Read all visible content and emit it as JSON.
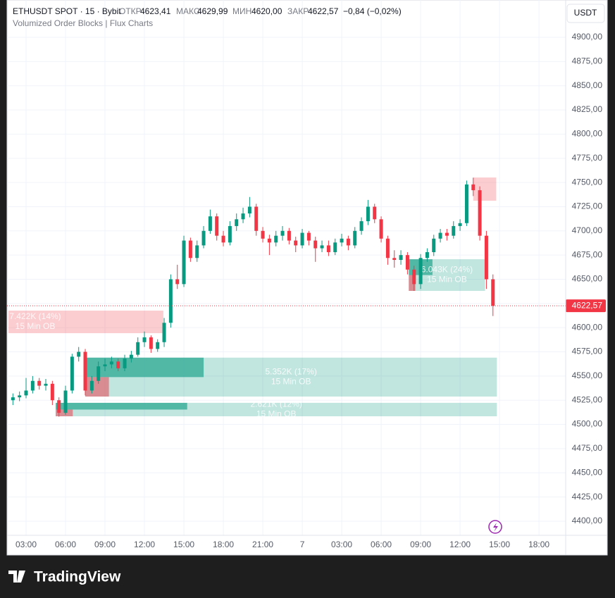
{
  "chart_data": {
    "type": "candlestick",
    "header": {
      "symbol": "ETHUSDT SPOT · 15 · Bybit",
      "open_label": "ОТКР",
      "open": "4623,41",
      "high_label": "МАКС",
      "high": "4629,99",
      "low_label": "МИН",
      "low": "4620,00",
      "close_label": "ЗАКР",
      "close": "4622,57",
      "change": "−0,84 (−0,02%)",
      "indicator": "Volumized Order Blocks | Flux Charts"
    },
    "currency": "USDT",
    "brand": "TradingView",
    "up_color": "#089981",
    "down_color": "#f23645",
    "x": [
      2,
      2.5,
      3,
      3.5,
      4,
      4.5,
      5,
      5.5,
      6,
      6.5,
      7,
      7.5,
      8,
      8.5,
      9,
      9.5,
      10,
      10.5,
      11,
      11.5,
      12,
      12.5,
      13,
      13.5,
      14,
      14.5,
      15,
      15.5,
      16,
      16.5,
      17,
      17.5,
      18,
      18.5,
      19,
      19.5,
      20,
      20.5,
      21,
      21.5,
      22,
      22.5,
      23,
      23.5,
      24,
      24.5,
      25,
      25.5,
      26,
      26.5,
      27,
      27.5,
      28,
      28.5,
      29,
      29.5,
      30,
      30.5,
      31,
      31.5,
      32,
      32.5,
      33,
      33.5,
      34,
      34.5,
      35,
      35.5,
      36,
      36.5,
      37,
      37.5,
      38,
      38.5
    ],
    "open": [
      4525,
      4528,
      4530,
      4535,
      4545,
      4540,
      4542,
      4525,
      4512,
      4535,
      4570,
      4575,
      4535,
      4545,
      4560,
      4562,
      4565,
      4558,
      4568,
      4572,
      4585,
      4590,
      4578,
      4585,
      4605,
      4650,
      4645,
      4690,
      4672,
      4685,
      4700,
      4715,
      4695,
      4688,
      4705,
      4712,
      4718,
      4725,
      4700,
      4692,
      4688,
      4695,
      4700,
      4690,
      4685,
      4698,
      4690,
      4682,
      4685,
      4678,
      4688,
      4692,
      4685,
      4700,
      4710,
      4725,
      4712,
      4692,
      4672,
      4670,
      4675,
      4660,
      4645,
      4672,
      4678,
      4692,
      4698,
      4695,
      4705,
      4708,
      4748,
      4742,
      4695,
      4650
    ],
    "high": [
      4532,
      4534,
      4548,
      4550,
      4548,
      4547,
      4545,
      4528,
      4540,
      4573,
      4580,
      4578,
      4550,
      4565,
      4568,
      4570,
      4568,
      4572,
      4576,
      4590,
      4596,
      4592,
      4588,
      4610,
      4655,
      4665,
      4695,
      4693,
      4690,
      4705,
      4722,
      4718,
      4700,
      4710,
      4718,
      4724,
      4735,
      4728,
      4704,
      4696,
      4700,
      4705,
      4703,
      4694,
      4702,
      4700,
      4694,
      4690,
      4690,
      4692,
      4697,
      4695,
      4704,
      4714,
      4732,
      4728,
      4715,
      4695,
      4680,
      4680,
      4678,
      4664,
      4676,
      4682,
      4696,
      4702,
      4702,
      4710,
      4712,
      4752,
      4755,
      4746,
      4700,
      4655
    ],
    "low": [
      4520,
      4524,
      4527,
      4532,
      4536,
      4535,
      4520,
      4508,
      4510,
      4532,
      4565,
      4530,
      4532,
      4542,
      4555,
      4558,
      4555,
      4555,
      4564,
      4570,
      4580,
      4574,
      4575,
      4580,
      4600,
      4640,
      4642,
      4668,
      4668,
      4682,
      4697,
      4690,
      4684,
      4685,
      4700,
      4708,
      4714,
      4695,
      4688,
      4675,
      4684,
      4690,
      4686,
      4678,
      4682,
      4685,
      4668,
      4678,
      4674,
      4675,
      4684,
      4680,
      4682,
      4696,
      4706,
      4708,
      4688,
      4665,
      4662,
      4665,
      4655,
      4638,
      4640,
      4668,
      4674,
      4688,
      4690,
      4692,
      4700,
      4705,
      4736,
      4690,
      4640,
      4612
    ],
    "close": [
      4528,
      4530,
      4535,
      4545,
      4540,
      4542,
      4525,
      4512,
      4535,
      4570,
      4575,
      4535,
      4545,
      4560,
      4562,
      4565,
      4558,
      4568,
      4572,
      4585,
      4590,
      4578,
      4585,
      4605,
      4650,
      4645,
      4690,
      4672,
      4685,
      4700,
      4715,
      4695,
      4688,
      4705,
      4712,
      4718,
      4725,
      4700,
      4692,
      4688,
      4695,
      4700,
      4690,
      4685,
      4698,
      4690,
      4682,
      4685,
      4678,
      4688,
      4692,
      4685,
      4700,
      4710,
      4725,
      4712,
      4692,
      4672,
      4670,
      4675,
      4660,
      4645,
      4672,
      4678,
      4692,
      4698,
      4695,
      4705,
      4708,
      4748,
      4742,
      4695,
      4650,
      4622.57
    ],
    "last_price": 4622.57,
    "last_price_label": "4622,57",
    "order_blocks": [
      {
        "kind": "bear",
        "x0": 1.66,
        "x1": 13.44,
        "top": 4617.6,
        "bottom": 4594.3,
        "label": "7.422K (14%)",
        "sublabel": "15 Min OB"
      },
      {
        "kind": "bull",
        "x0": 7.5,
        "x1": 38.8,
        "top": 4569.0,
        "bottom": 4528.8,
        "bull_x1": 16.5,
        "bear_x1": 9.3,
        "label": "5.352K (17%)",
        "sublabel": "15 Min OB"
      },
      {
        "kind": "bull",
        "x0": 5.25,
        "x1": 38.8,
        "top": 4522.3,
        "bottom": 4508.4,
        "bull_x1": 15.25,
        "bear_x1": 6.55,
        "label": "2.621K (12%)",
        "sublabel": "15 Min OB"
      },
      {
        "kind": "bull",
        "x0": 32.1,
        "x1": 37.9,
        "top": 4670.7,
        "bottom": 4638.0,
        "bull_x1": 33.9,
        "bear_x1": 32.6,
        "label": "6.043K (24%)",
        "sublabel": "15 Min OB"
      },
      {
        "kind": "bear",
        "x0": 37.0,
        "x1": 38.75,
        "top": 4755.2,
        "bottom": 4731.2
      }
    ],
    "xlim": [
      1.66,
      44.03
    ],
    "xticks": [
      {
        "value": 3,
        "label": "03:00"
      },
      {
        "value": 6,
        "label": "06:00"
      },
      {
        "value": 9,
        "label": "09:00"
      },
      {
        "value": 12,
        "label": "12:00"
      },
      {
        "value": 15,
        "label": "15:00"
      },
      {
        "value": 18,
        "label": "18:00"
      },
      {
        "value": 21,
        "label": "21:00"
      },
      {
        "value": 24,
        "label": "7"
      },
      {
        "value": 27,
        "label": "03:00"
      },
      {
        "value": 30,
        "label": "06:00"
      },
      {
        "value": 33,
        "label": "09:00"
      },
      {
        "value": 36,
        "label": "12:00"
      },
      {
        "value": 39,
        "label": "15:00"
      },
      {
        "value": 42,
        "label": "18:00"
      }
    ],
    "ylim": [
      4385.4,
      4938.6
    ],
    "yticks": [
      {
        "value": 4400,
        "label": "4400,00"
      },
      {
        "value": 4425,
        "label": "4425,00"
      },
      {
        "value": 4450,
        "label": "4450,00"
      },
      {
        "value": 4475,
        "label": "4475,00"
      },
      {
        "value": 4500,
        "label": "4500,00"
      },
      {
        "value": 4525,
        "label": "4525,00"
      },
      {
        "value": 4550,
        "label": "4550,00"
      },
      {
        "value": 4575,
        "label": "4575,00"
      },
      {
        "value": 4600,
        "label": "4600,00"
      },
      {
        "value": 4625,
        "label": "4625,00"
      },
      {
        "value": 4650,
        "label": "4650,00"
      },
      {
        "value": 4675,
        "label": "4675,00"
      },
      {
        "value": 4700,
        "label": "4700,00"
      },
      {
        "value": 4725,
        "label": "4725,00"
      },
      {
        "value": 4750,
        "label": "4750,00"
      },
      {
        "value": 4775,
        "label": "4775,00"
      },
      {
        "value": 4800,
        "label": "4800,00"
      },
      {
        "value": 4825,
        "label": "4825,00"
      },
      {
        "value": 4850,
        "label": "4850,00"
      },
      {
        "value": 4875,
        "label": "4875,00"
      },
      {
        "value": 4900,
        "label": "4900,00"
      }
    ],
    "grid": true
  }
}
